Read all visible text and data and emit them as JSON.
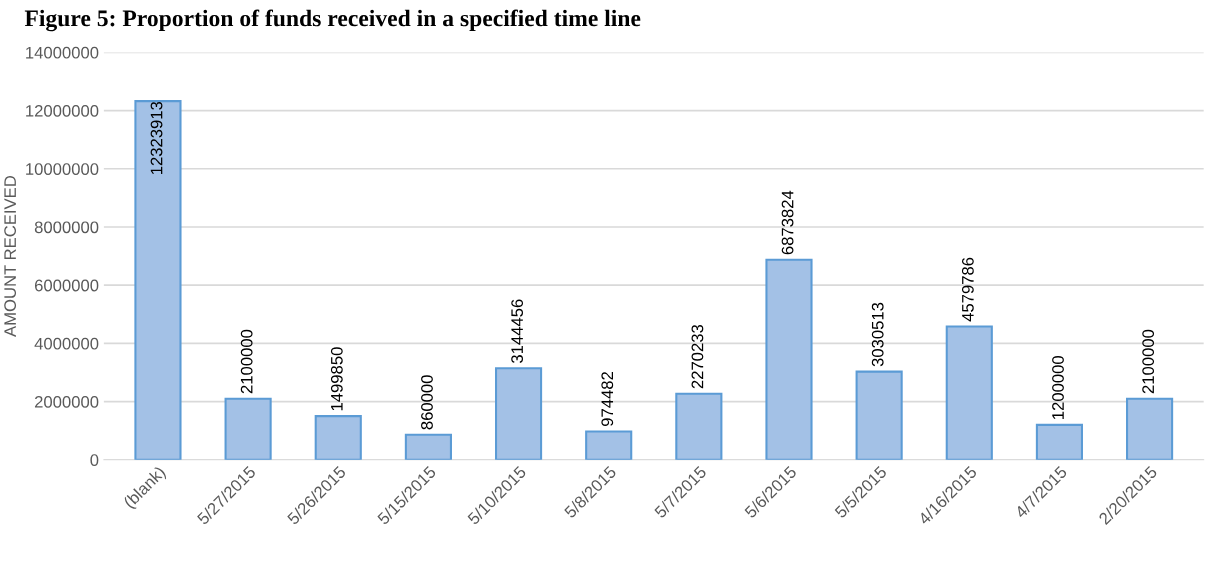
{
  "chart_data": {
    "type": "bar",
    "title": "Figure 5: Proportion of funds received in a specified time line",
    "ylabel": "AMOUNT RECEIVED",
    "categories": [
      "(blank)",
      "5/27/2015",
      "5/26/2015",
      "5/15/2015",
      "5/10/2015",
      "5/8/2015",
      "5/7/2015",
      "5/6/2015",
      "5/5/2015",
      "4/16/2015",
      "4/7/2015",
      "2/20/2015"
    ],
    "values": [
      12323913,
      2100000,
      1499850,
      860000,
      3144456,
      974482,
      2270233,
      6873824,
      3030513,
      4579786,
      1200000,
      2100000
    ],
    "color": "#a3c1e6",
    "data_labels": true,
    "grid": "y",
    "ylim": [
      0,
      14000000
    ],
    "yticks": [
      0,
      2000000,
      4000000,
      6000000,
      8000000,
      10000000,
      12000000,
      14000000
    ]
  }
}
